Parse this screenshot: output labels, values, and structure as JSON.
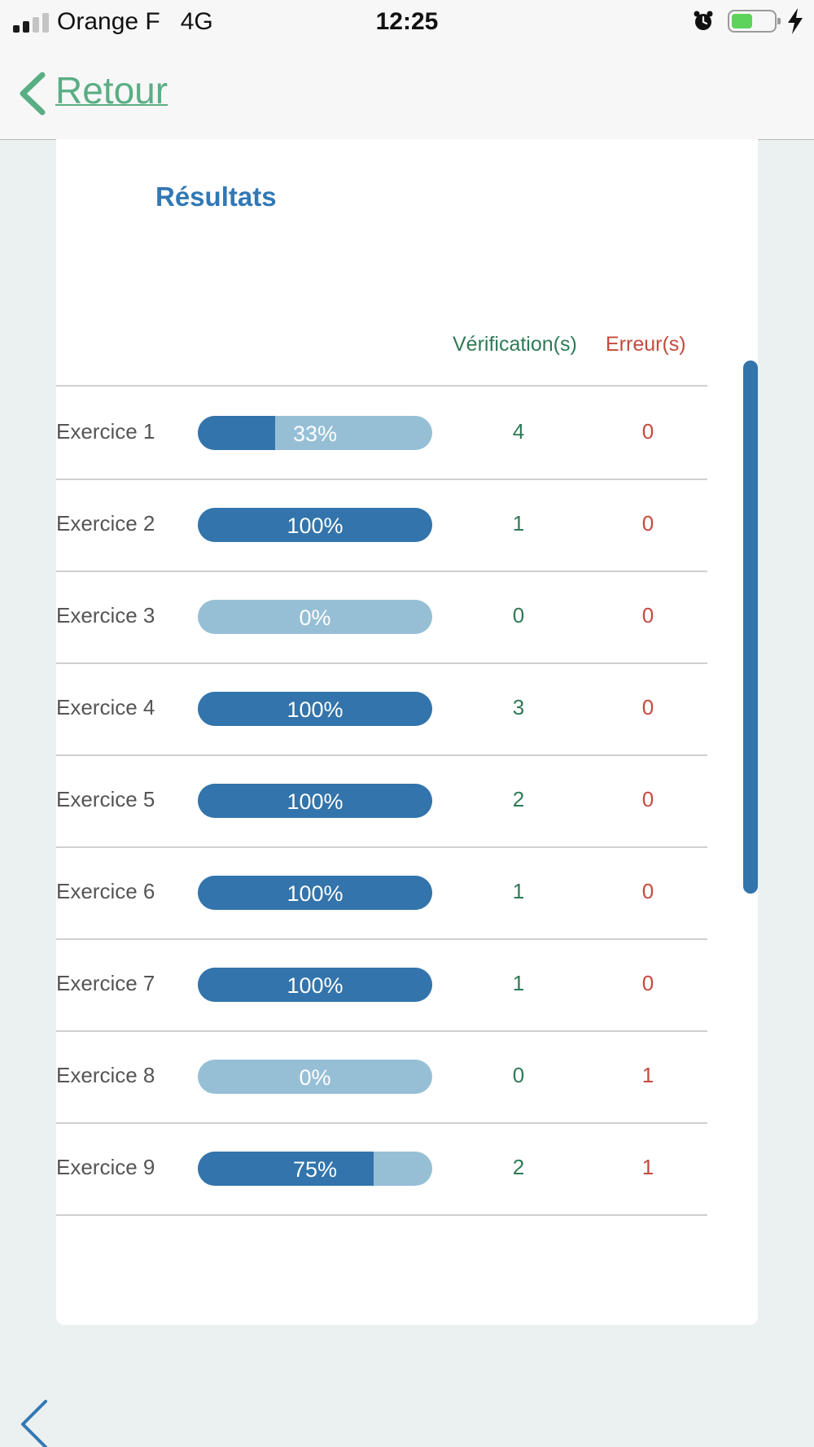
{
  "status_bar": {
    "carrier": "Orange F",
    "network": "4G",
    "time": "12:25",
    "battery_fraction": 0.45
  },
  "nav": {
    "back_label": "Retour"
  },
  "results": {
    "title": "Résultats",
    "col_verifications": "Vérification(s)",
    "col_errors": "Erreur(s)",
    "rows": [
      {
        "label": "Exercice 1",
        "percent": 33,
        "percent_label": "33%",
        "verifications": "4",
        "errors": "0"
      },
      {
        "label": "Exercice 2",
        "percent": 100,
        "percent_label": "100%",
        "verifications": "1",
        "errors": "0"
      },
      {
        "label": "Exercice 3",
        "percent": 0,
        "percent_label": "0%",
        "verifications": "0",
        "errors": "0"
      },
      {
        "label": "Exercice 4",
        "percent": 100,
        "percent_label": "100%",
        "verifications": "3",
        "errors": "0"
      },
      {
        "label": "Exercice 5",
        "percent": 100,
        "percent_label": "100%",
        "verifications": "2",
        "errors": "0"
      },
      {
        "label": "Exercice 6",
        "percent": 100,
        "percent_label": "100%",
        "verifications": "1",
        "errors": "0"
      },
      {
        "label": "Exercice 7",
        "percent": 100,
        "percent_label": "100%",
        "verifications": "1",
        "errors": "0"
      },
      {
        "label": "Exercice 8",
        "percent": 0,
        "percent_label": "0%",
        "verifications": "0",
        "errors": "1"
      },
      {
        "label": "Exercice 9",
        "percent": 75,
        "percent_label": "75%",
        "verifications": "2",
        "errors": "1"
      }
    ]
  },
  "colors": {
    "accent_blue": "#3274ab",
    "bar_track": "#96bfd6",
    "green": "#2e7a55",
    "red": "#c44a3d",
    "back_green": "#5aae84"
  },
  "icons": [
    "signal-icon",
    "alarm-icon",
    "battery-icon",
    "charging-icon",
    "chevron-left-icon"
  ]
}
